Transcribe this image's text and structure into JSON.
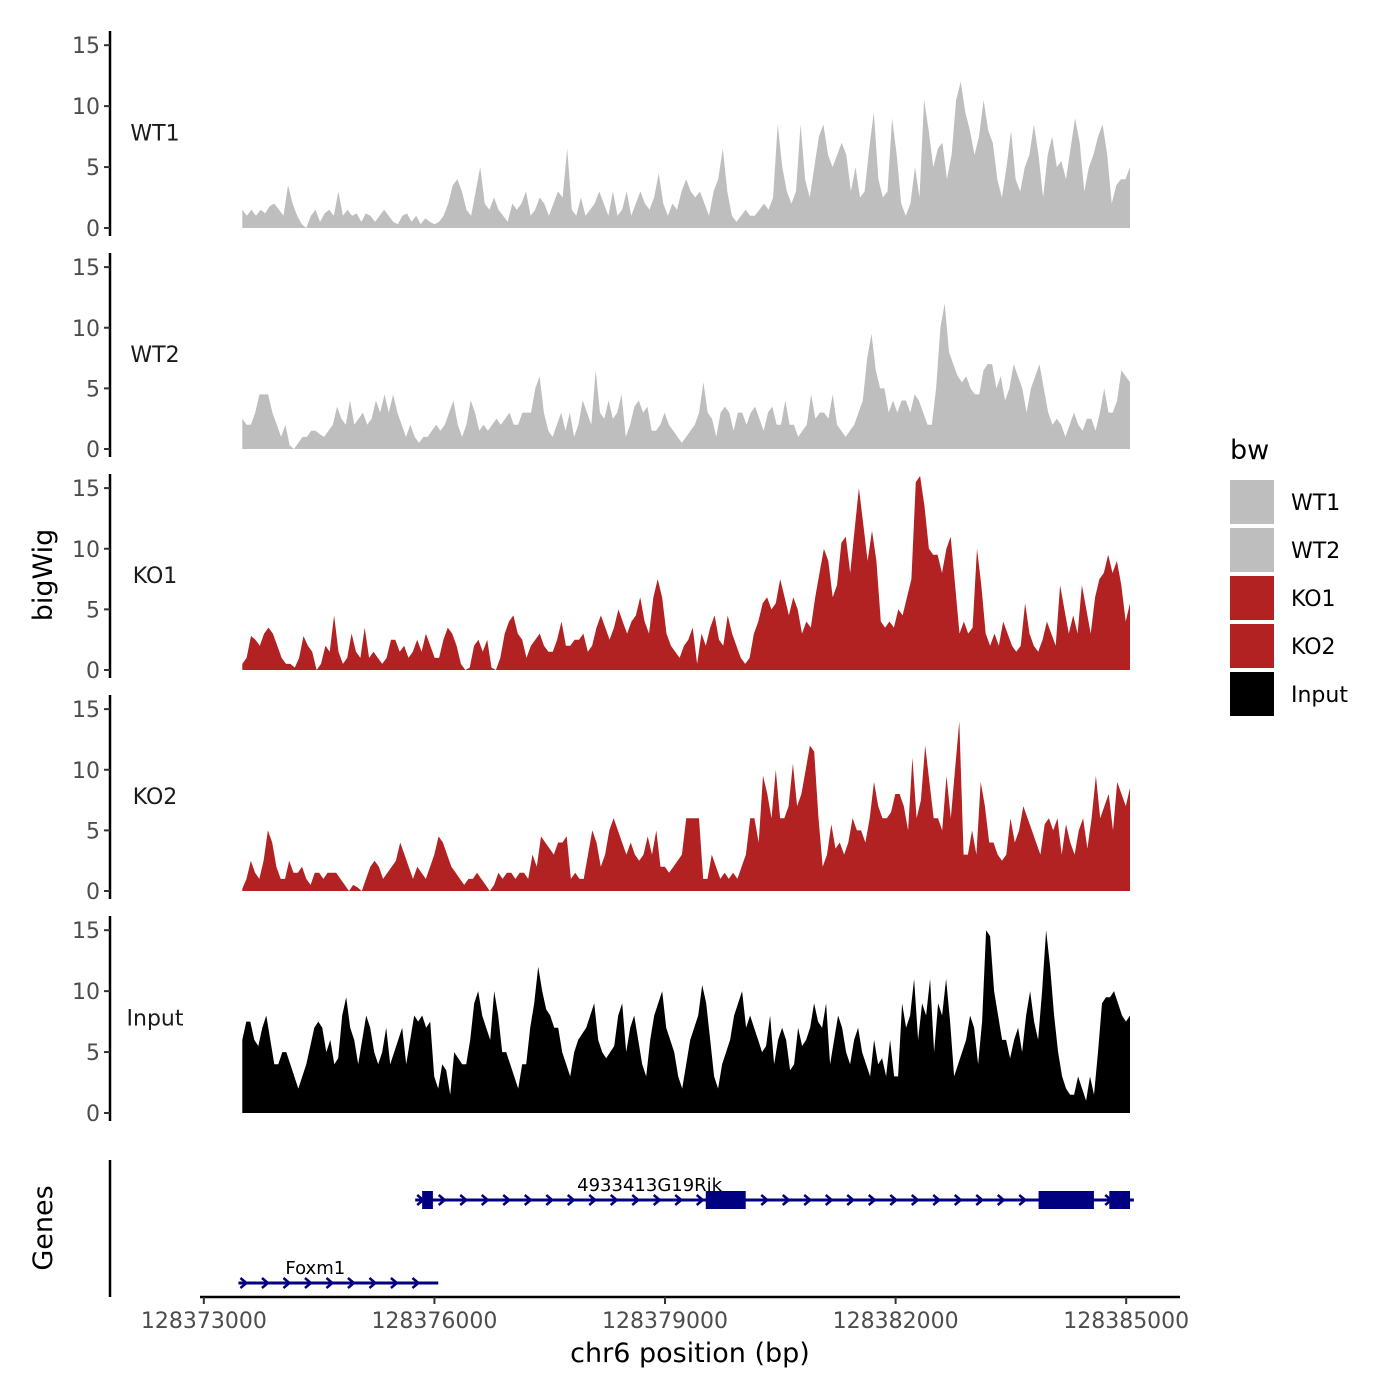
{
  "chart_data": {
    "type": "area",
    "ylabel": "bigWig",
    "genes_label": "Genes",
    "xlabel": "chr6 position (bp)",
    "xlim": [
      128372950,
      128385700
    ],
    "x_ticks": [
      128373000,
      128376000,
      128379000,
      128382000,
      128385000
    ],
    "x_tick_labels": [
      "128373000",
      "128376000",
      "128379000",
      "128382000",
      "128385000"
    ],
    "ylim": [
      0,
      16
    ],
    "y_ticks": [
      0,
      5,
      10,
      15
    ],
    "y_tick_labels": [
      "0",
      "5",
      "10",
      "15"
    ],
    "signal_x_range": [
      128373500,
      128385050
    ],
    "legend": {
      "title": "bw",
      "entries": [
        {
          "label": "WT1",
          "color": "#bebebe"
        },
        {
          "label": "WT2",
          "color": "#bebebe"
        },
        {
          "label": "KO1",
          "color": "#b22222"
        },
        {
          "label": "KO2",
          "color": "#b22222"
        },
        {
          "label": "Input",
          "color": "#000000"
        }
      ],
      "position": "right"
    },
    "tracks": [
      {
        "name": "WT1",
        "color": "#bebebe",
        "values": [
          1.5,
          1,
          1.5,
          1,
          1.5,
          1.2,
          1.8,
          2,
          1.5,
          1,
          3.5,
          2,
          1,
          0.3,
          0,
          1,
          1.5,
          0.5,
          1.2,
          1.5,
          1,
          3,
          1,
          1.5,
          1,
          1.2,
          0.5,
          1.2,
          1,
          0.5,
          1,
          1.5,
          1,
          0.5,
          0.3,
          1,
          1.2,
          0.5,
          1,
          0.3,
          0.8,
          0.5,
          0.3,
          0.5,
          1,
          2,
          3.5,
          4,
          3,
          1.5,
          1,
          3,
          5,
          2,
          1.5,
          2.5,
          1.5,
          1,
          0.5,
          2,
          1.5,
          2,
          3,
          1,
          1.5,
          2.5,
          2,
          1,
          2,
          3,
          2.5,
          6.5,
          1.5,
          1,
          2.5,
          1,
          1.5,
          2,
          3,
          2,
          1,
          3,
          1,
          1.5,
          3,
          1,
          2,
          3,
          2,
          1.5,
          2.5,
          4.5,
          2,
          1,
          2,
          1.5,
          3,
          4,
          3,
          2.5,
          3,
          2,
          1,
          3,
          4,
          6.5,
          3,
          1,
          0.5,
          1,
          1.5,
          1,
          1,
          1.5,
          2,
          1.5,
          2.5,
          8.5,
          5,
          3,
          2,
          3,
          8.5,
          4,
          2.5,
          5,
          7.5,
          8.5,
          6,
          5,
          6,
          7,
          6,
          3,
          5,
          2.5,
          3,
          6.5,
          9.5,
          4,
          2.5,
          3,
          9,
          6,
          2,
          1,
          2,
          5,
          2.5,
          10.5,
          8,
          5,
          6.5,
          7,
          4,
          6,
          10.5,
          12,
          9.5,
          8,
          6,
          7.5,
          10.5,
          8,
          7,
          4,
          2.5,
          5,
          8,
          4,
          3,
          5,
          6,
          8.5,
          6,
          2.5,
          6,
          7.5,
          5,
          5.5,
          4,
          6.5,
          9,
          7,
          3,
          5,
          6,
          7.5,
          8.5,
          6,
          2,
          3.5,
          4,
          4,
          5
        ]
      },
      {
        "name": "WT2",
        "color": "#bebebe",
        "values": [
          2.5,
          2,
          2,
          3,
          4.5,
          4.5,
          4.5,
          3,
          2,
          1,
          2,
          0.3,
          0,
          0.5,
          1,
          1,
          1.5,
          1.5,
          1.2,
          1,
          1.5,
          2,
          3.5,
          2.5,
          2,
          4,
          2,
          2.5,
          3,
          2,
          2.5,
          4,
          3,
          4.5,
          3,
          4.5,
          3,
          2,
          1,
          2,
          1,
          0.5,
          1,
          1,
          1.5,
          2,
          1.5,
          2,
          3,
          4,
          2,
          1,
          2,
          4,
          3,
          1.5,
          2,
          1.5,
          2,
          2.5,
          2,
          2.5,
          3,
          2,
          2,
          3,
          3,
          3,
          5,
          6,
          3,
          1.5,
          1,
          2,
          3,
          1.5,
          3,
          1,
          2,
          4,
          3,
          2,
          6.5,
          3,
          2.5,
          4,
          2.5,
          3,
          4.5,
          1,
          2,
          3.5,
          4,
          3,
          3.5,
          1.5,
          1.5,
          2,
          3,
          2,
          1.5,
          1,
          0.5,
          1,
          1.5,
          2,
          3,
          5.5,
          3,
          2.5,
          1,
          3,
          3.5,
          3,
          1.5,
          3,
          3,
          2,
          3,
          3.5,
          2.5,
          1.5,
          3,
          3.5,
          2,
          2,
          4,
          2,
          2,
          1,
          1.5,
          2,
          4.5,
          2.5,
          3,
          3,
          2.5,
          4.5,
          2,
          1.5,
          1,
          1.5,
          2,
          3,
          4,
          7.5,
          9.5,
          6.5,
          5,
          5,
          3,
          4,
          3,
          4,
          4,
          3,
          4.5,
          4,
          3,
          2,
          2,
          5,
          10,
          12,
          8,
          7,
          6,
          5.5,
          6,
          5,
          4.5,
          4.5,
          6.5,
          7,
          7,
          5,
          6,
          4,
          5,
          7,
          6,
          5,
          3,
          5,
          6,
          7,
          5,
          3,
          2,
          2.5,
          2,
          1,
          2,
          3,
          2,
          1.5,
          2.5,
          2.5,
          1.5,
          3,
          5,
          3,
          3,
          4,
          6.5,
          6,
          5.5
        ]
      },
      {
        "name": "KO1",
        "color": "#b22222",
        "values": [
          0.5,
          1,
          2.8,
          2.5,
          2,
          3,
          3.5,
          3,
          2,
          1,
          0.5,
          0.5,
          0.2,
          1,
          2.8,
          2,
          1.5,
          0,
          0.5,
          2,
          1.5,
          4.5,
          1.5,
          0.5,
          1,
          3,
          1.5,
          1,
          3.5,
          1,
          1.5,
          1,
          0.5,
          1,
          2.5,
          2.5,
          1.5,
          2,
          1,
          1.5,
          2.5,
          1.5,
          3,
          2,
          1,
          1,
          2.5,
          3.5,
          3,
          2,
          0.5,
          0,
          0.2,
          2,
          2.5,
          1.5,
          2.5,
          0.2,
          0,
          1,
          3,
          4,
          4.5,
          3,
          2.5,
          1,
          2,
          2.5,
          3,
          2,
          1.5,
          1.5,
          2.5,
          4,
          2,
          2,
          2.5,
          2.5,
          3,
          1.5,
          2,
          3.5,
          4.5,
          3.5,
          2.5,
          3.5,
          5,
          4,
          3,
          4,
          4.5,
          6,
          4,
          3,
          6,
          7.5,
          6,
          3,
          2,
          1.5,
          1,
          2,
          2.5,
          3.5,
          0.5,
          3,
          2,
          3.5,
          4.5,
          2.5,
          2,
          4.5,
          3,
          2,
          1,
          0.5,
          1,
          3,
          4,
          5.5,
          6,
          5,
          5.5,
          7.5,
          6,
          4.5,
          6,
          5,
          3,
          4,
          3.5,
          6,
          8,
          10,
          9,
          6,
          7,
          10.5,
          11,
          8,
          11.5,
          15,
          12,
          9,
          11.5,
          9,
          4,
          3.5,
          4,
          3.5,
          5,
          4.5,
          6,
          7.5,
          15.5,
          16,
          13.5,
          10,
          9.5,
          9.5,
          8,
          10,
          11,
          7,
          3,
          4,
          3,
          3.5,
          10,
          7,
          3,
          2,
          3,
          2,
          4,
          3,
          2,
          1.5,
          2,
          5.5,
          3,
          2,
          1.5,
          2.5,
          4,
          3,
          2,
          7,
          5,
          3,
          4.5,
          3,
          7,
          5,
          3,
          6,
          7.5,
          8,
          9.5,
          8,
          9,
          7,
          4,
          5.5
        ]
      },
      {
        "name": "KO2",
        "color": "#b22222",
        "values": [
          0.2,
          1,
          2.5,
          1.5,
          1,
          2.5,
          5,
          4,
          2,
          1,
          1,
          2.5,
          1.5,
          1.5,
          2,
          1,
          0.5,
          1.5,
          1.5,
          1,
          1.5,
          1.5,
          1.5,
          1,
          0.5,
          0,
          0.5,
          0.3,
          0,
          1,
          2,
          2.5,
          2,
          1,
          1.5,
          2,
          2.5,
          4,
          3,
          2,
          1,
          2,
          1.5,
          1,
          2,
          3,
          4.5,
          4,
          3,
          2,
          1.5,
          1,
          0.5,
          1,
          1,
          1.5,
          1,
          0.5,
          0,
          0.5,
          1.5,
          1,
          1.5,
          1.5,
          1,
          1.5,
          1.5,
          1,
          3,
          2,
          4.5,
          4,
          3.5,
          3,
          4,
          4,
          4.5,
          1,
          1.5,
          1,
          1,
          3,
          5,
          4,
          2,
          3,
          5,
          6,
          5,
          4,
          3,
          4,
          3,
          2.5,
          3,
          4.5,
          3,
          5,
          2,
          2,
          1.5,
          2,
          2.5,
          3,
          6,
          6,
          6,
          6,
          1,
          1,
          3,
          2,
          1,
          1.5,
          1,
          1.5,
          1,
          2,
          3,
          6,
          6,
          4,
          9.5,
          8,
          6,
          10,
          6,
          6,
          7,
          10.5,
          7,
          8,
          10,
          12,
          11.5,
          6,
          2,
          3,
          5.5,
          3.5,
          4,
          3,
          4,
          6,
          5,
          5,
          4,
          6,
          9,
          7,
          6,
          6,
          6.5,
          8,
          8,
          7,
          5,
          11,
          6,
          7.5,
          12,
          9,
          6,
          6,
          5,
          9.5,
          6,
          10,
          14,
          3,
          3,
          5,
          3,
          9,
          7,
          4,
          4,
          3,
          2.5,
          3,
          6,
          4,
          5,
          7,
          6,
          5,
          4,
          3,
          5.5,
          6,
          5,
          6,
          3,
          5.5,
          4,
          3,
          5,
          6,
          3.5,
          6,
          9.5,
          6,
          7,
          8,
          5,
          9,
          8,
          7,
          8.5
        ]
      },
      {
        "name": "Input",
        "color": "#000000",
        "values": [
          6,
          7.5,
          7.5,
          6,
          5.5,
          7,
          8,
          6,
          4,
          4,
          5,
          5,
          4,
          3,
          2,
          3,
          4,
          5.5,
          7,
          7.5,
          7,
          5,
          6,
          4,
          4.5,
          8,
          9.5,
          7,
          6,
          4,
          6,
          8,
          7,
          5,
          4,
          5,
          7,
          4,
          5,
          6,
          7,
          4,
          6,
          8,
          7.5,
          8,
          7,
          7.5,
          3,
          2,
          4,
          3.5,
          1.5,
          5,
          4.5,
          4,
          4,
          6,
          9,
          10,
          8,
          7,
          6,
          10,
          8,
          5,
          5,
          4,
          3,
          2,
          4,
          4,
          7,
          9,
          12,
          10,
          8.5,
          8,
          7,
          7,
          5,
          4,
          3,
          5,
          6,
          6.5,
          7,
          8,
          9,
          6,
          5,
          4.5,
          5,
          5.5,
          8,
          9,
          5,
          7,
          8,
          6,
          4,
          3,
          6,
          8,
          9,
          10,
          7,
          6,
          5,
          3,
          2,
          4,
          6,
          7,
          8,
          10.5,
          9,
          6,
          3,
          2,
          4,
          5,
          6,
          8,
          9,
          10,
          7,
          8,
          7,
          6,
          5,
          5.5,
          8,
          4,
          6,
          7,
          6,
          3.5,
          4,
          7,
          5.5,
          6,
          7,
          9,
          7.5,
          7,
          9,
          4,
          6,
          8,
          7,
          5,
          4,
          6,
          7,
          5,
          4,
          3,
          6,
          4,
          4.5,
          3,
          6,
          3,
          3,
          9,
          7,
          8,
          11,
          6,
          9,
          8,
          11,
          5,
          9,
          8,
          11,
          7.5,
          3,
          4,
          5,
          6,
          8,
          7,
          4,
          7.5,
          15,
          14.5,
          10,
          8,
          6,
          6,
          4.5,
          6,
          7,
          5,
          8,
          10,
          7.5,
          6,
          10,
          15,
          12,
          8,
          5,
          3,
          2,
          1.5,
          1.5,
          3,
          2,
          1,
          3,
          1.5,
          5,
          9,
          9.5,
          9.5,
          10,
          9,
          8,
          7.5,
          8
        ]
      }
    ],
    "genes": [
      {
        "name": "4933413G19Rik",
        "label_x": 128378800,
        "start": 128375750,
        "end": 128385100,
        "strand": "+",
        "exons": [
          [
            128375840,
            128375980
          ],
          [
            128379530,
            128380050
          ],
          [
            128383860,
            128384580
          ],
          [
            128384780,
            128385050
          ]
        ]
      },
      {
        "name": "Foxm1",
        "label_x": 128374450,
        "start": 128373450,
        "end": 128376050,
        "strand": "+",
        "exons": []
      }
    ]
  }
}
